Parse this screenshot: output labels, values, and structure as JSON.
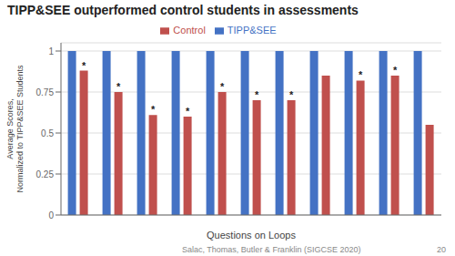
{
  "chart_data": {
    "type": "bar",
    "title": "TIPP&SEE outperformed control students in assessments",
    "xlabel": "Questions on Loops",
    "ylabel": "Average Scores,\nNormalized to TIPP&SEE Students",
    "categories": [
      null,
      null,
      null,
      null,
      null,
      null,
      null,
      null,
      null,
      null,
      null
    ],
    "series": [
      {
        "name": "TIPP&SEE",
        "color": "#4472C4",
        "values": [
          1.0,
          1.0,
          1.0,
          1.0,
          1.0,
          1.0,
          1.0,
          1.0,
          1.0,
          1.0,
          1.0
        ]
      },
      {
        "name": "Control",
        "color": "#C0504D",
        "values": [
          0.88,
          0.75,
          0.61,
          0.6,
          0.75,
          0.7,
          0.7,
          0.85,
          0.82,
          0.85,
          0.55
        ]
      }
    ],
    "ylim": [
      0,
      1.05
    ],
    "yticks": [
      0,
      0.25,
      0.5,
      0.75,
      1
    ],
    "grid": true,
    "legend": "top",
    "tick_labels": "y",
    "annotations": [
      {
        "text": "*",
        "series": "Control",
        "starred": [
          true,
          true,
          true,
          true,
          true,
          true,
          true,
          false,
          true,
          true,
          false
        ]
      },
      {
        "text": "Salac, Thomas, Butler & Franklin (SIGCSE 2020)"
      },
      {
        "text": "20"
      }
    ]
  }
}
